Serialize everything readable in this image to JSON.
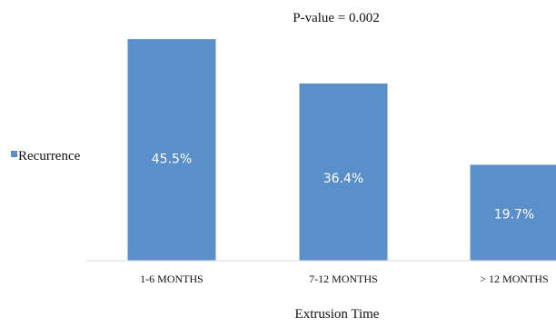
{
  "chart_data": {
    "type": "bar",
    "annotation": "P-value = 0.002",
    "xlabel": "Extrusion Time",
    "ylabel": "",
    "categories": [
      "1-6 MONTHS",
      "7-12 MONTHS",
      "> 12 MONTHS"
    ],
    "series": [
      {
        "name": "Recurrence",
        "values": [
          45.5,
          36.4,
          19.7
        ],
        "labels": [
          "45.5%",
          "36.4%",
          "19.7%"
        ],
        "color": "#5b8fc9"
      }
    ],
    "ylim": [
      0,
      50
    ],
    "grid": false,
    "legend_position": "left"
  }
}
